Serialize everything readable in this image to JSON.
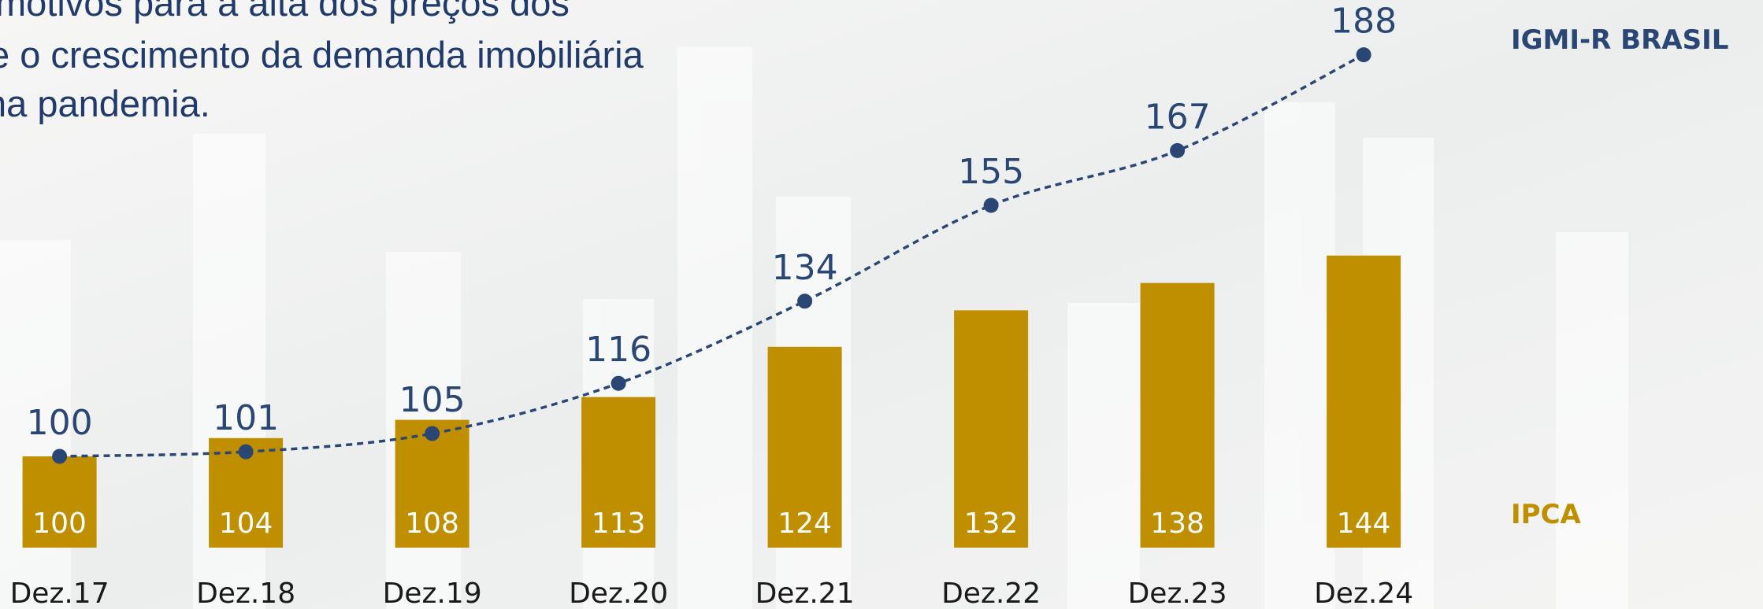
{
  "chart_data": {
    "type": "combo",
    "text_lines": [
      "motivos para a alta dos preços dos",
      "e o crescimento da demanda imobiliária",
      "na pandemia."
    ],
    "categories": [
      "Dez.17",
      "Dez.18",
      "Dez.19",
      "Dez.20",
      "Dez.21",
      "Dez.22",
      "Dez.23",
      "Dez.24"
    ],
    "series": [
      {
        "name": "IPCA",
        "type": "bar",
        "color": "#bf8f00",
        "values": [
          100,
          104,
          108,
          113,
          124,
          132,
          138,
          144
        ]
      },
      {
        "name": "IGMI-R BRASIL",
        "type": "line",
        "color": "#2a4674",
        "values": [
          100,
          101,
          105,
          116,
          134,
          155,
          167,
          188
        ]
      }
    ],
    "ylim": [
      80,
      200
    ]
  }
}
